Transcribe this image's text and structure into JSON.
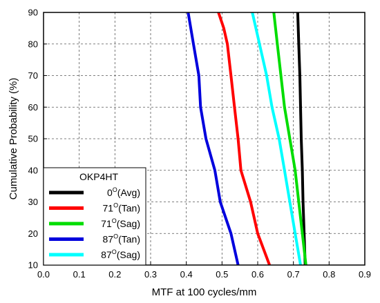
{
  "chart_data": {
    "type": "line",
    "title": "",
    "xlabel": "MTF at 100 cycles/mm",
    "ylabel": "Cumulative Probability (%)",
    "xlim": [
      0.0,
      0.9
    ],
    "ylim": [
      10,
      90
    ],
    "x_ticks": [
      "0.0",
      "0.1",
      "0.2",
      "0.3",
      "0.4",
      "0.5",
      "0.6",
      "0.7",
      "0.8",
      "0.9"
    ],
    "y_ticks": [
      "10",
      "20",
      "30",
      "40",
      "50",
      "60",
      "70",
      "80",
      "90"
    ],
    "grid": true,
    "legend": {
      "title": "OKP4HT",
      "position": "bottom-left"
    },
    "series": [
      {
        "name": "0°(Avg)",
        "name_base": "0",
        "name_sup": "O",
        "name_rest": "(Avg)",
        "color": "#000000",
        "points": [
          [
            0.712,
            90
          ],
          [
            0.715,
            80
          ],
          [
            0.718,
            70
          ],
          [
            0.72,
            60
          ],
          [
            0.722,
            50
          ],
          [
            0.725,
            40
          ],
          [
            0.727,
            30
          ],
          [
            0.73,
            20
          ],
          [
            0.733,
            10
          ]
        ]
      },
      {
        "name": "71°(Tan)",
        "name_base": "71",
        "name_sup": "O",
        "name_rest": "(Tan)",
        "color": "#ff0000",
        "points": [
          [
            0.49,
            90
          ],
          [
            0.505,
            85
          ],
          [
            0.515,
            80
          ],
          [
            0.525,
            70
          ],
          [
            0.535,
            60
          ],
          [
            0.545,
            50
          ],
          [
            0.553,
            40
          ],
          [
            0.58,
            30
          ],
          [
            0.6,
            20
          ],
          [
            0.633,
            10
          ]
        ]
      },
      {
        "name": "71°(Sag)",
        "name_base": "71",
        "name_sup": "O",
        "name_rest": "(Sag)",
        "color": "#00dd00",
        "points": [
          [
            0.645,
            90
          ],
          [
            0.655,
            80
          ],
          [
            0.665,
            70
          ],
          [
            0.675,
            60
          ],
          [
            0.69,
            50
          ],
          [
            0.705,
            40
          ],
          [
            0.715,
            30
          ],
          [
            0.725,
            20
          ],
          [
            0.735,
            10
          ]
        ]
      },
      {
        "name": "87°(Tan)",
        "name_base": "87",
        "name_sup": "O",
        "name_rest": "(Tan)",
        "color": "#0000dd",
        "points": [
          [
            0.405,
            90
          ],
          [
            0.42,
            80
          ],
          [
            0.435,
            70
          ],
          [
            0.44,
            60
          ],
          [
            0.455,
            50
          ],
          [
            0.48,
            40
          ],
          [
            0.495,
            30
          ],
          [
            0.525,
            20
          ],
          [
            0.545,
            10
          ]
        ]
      },
      {
        "name": "87°(Sag)",
        "name_base": "87",
        "name_sup": "O",
        "name_rest": "(Sag)",
        "color": "#00ffff",
        "points": [
          [
            0.585,
            90
          ],
          [
            0.605,
            80
          ],
          [
            0.625,
            70
          ],
          [
            0.64,
            60
          ],
          [
            0.66,
            50
          ],
          [
            0.675,
            40
          ],
          [
            0.69,
            30
          ],
          [
            0.705,
            20
          ],
          [
            0.72,
            10
          ]
        ]
      }
    ]
  }
}
